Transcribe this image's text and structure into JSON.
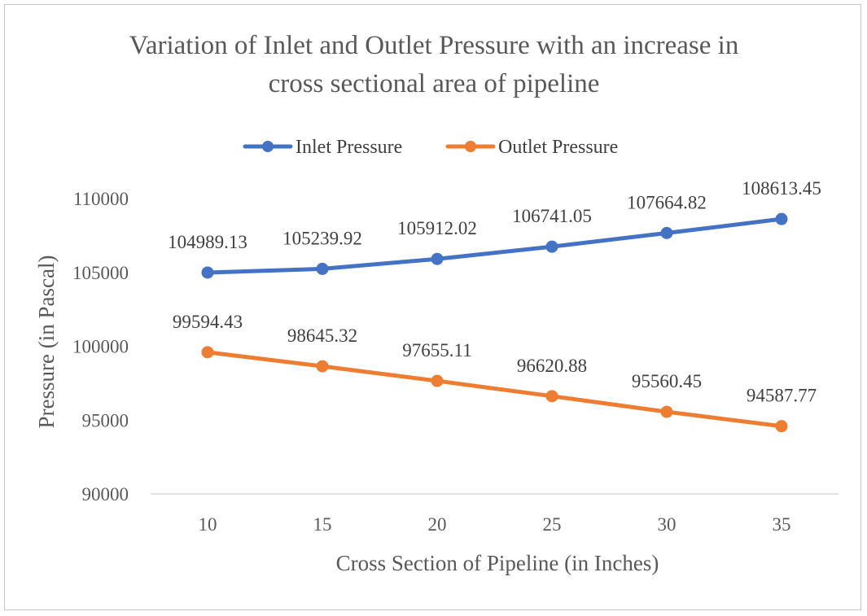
{
  "chart_data": {
    "type": "line",
    "title": "Variation of Inlet and Outlet Pressure with an increase in cross sectional area of pipeline",
    "title_lines": [
      "Variation of Inlet and Outlet Pressure with an increase in",
      "cross sectional area of pipeline"
    ],
    "xlabel": "Cross Section of Pipeline (in Inches)",
    "ylabel": "Pressure (in Pascal)",
    "categories": [
      "10",
      "15",
      "20",
      "25",
      "30",
      "35"
    ],
    "ylim": [
      90000,
      110000
    ],
    "yticks": [
      "90000",
      "95000",
      "100000",
      "105000",
      "110000"
    ],
    "legend_position": "top",
    "grid": "horizontal-axis-only",
    "series": [
      {
        "name": "Inlet Pressure",
        "color": "#4472C4",
        "values": [
          104989.13,
          105239.92,
          105912.02,
          106741.05,
          107664.82,
          108613.45
        ],
        "labels": [
          "104989.13",
          "105239.92",
          "105912.02",
          "106741.05",
          "107664.82",
          "108613.45"
        ]
      },
      {
        "name": "Outlet Pressure",
        "color": "#ED7D31",
        "values": [
          99594.43,
          98645.32,
          97655.11,
          96620.88,
          95560.45,
          94587.77
        ],
        "labels": [
          "99594.43",
          "98645.32",
          "97655.11",
          "96620.88",
          "95560.45",
          "94587.77"
        ]
      }
    ]
  }
}
